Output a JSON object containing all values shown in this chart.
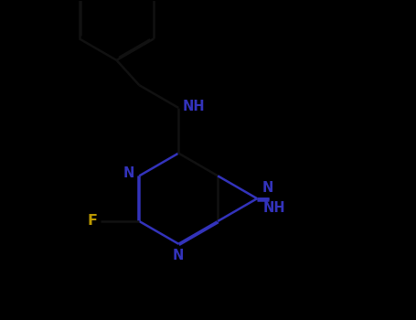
{
  "bg_color": "#000000",
  "bond_color": "#111111",
  "n_color": "#3333bb",
  "f_color": "#bb9900",
  "lw": 1.8,
  "dbo": 0.018,
  "figsize": [
    4.55,
    3.5
  ],
  "dpi": 100,
  "xlim": [
    0,
    9.1
  ],
  "ylim": [
    0,
    7.0
  ]
}
